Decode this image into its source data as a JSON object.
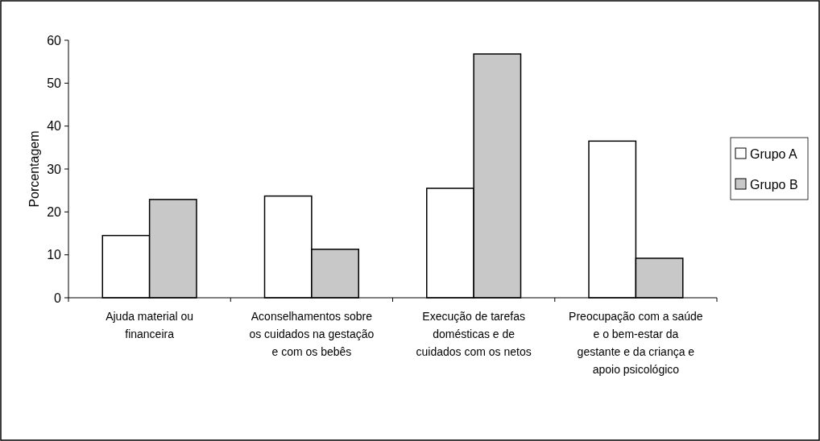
{
  "chart_data": {
    "type": "bar",
    "ylabel": "Porcentagem",
    "categories": [
      "Ajuda material ou financeira",
      "Aconselhamentos sobre os cuidados na gestação e com os bebês",
      "Execução de tarefas domésticas e de cuidados com os netos",
      "Preocupação com a saúde e o bem-estar da gestante e da criança e apoio psicológico"
    ],
    "series": [
      {
        "name": "Grupo A",
        "color": "#ffffff",
        "values": [
          14.5,
          23.7,
          25.5,
          36.5
        ]
      },
      {
        "name": "Grupo B",
        "color": "#c8c8c8",
        "values": [
          22.9,
          11.3,
          56.8,
          9.2
        ]
      }
    ],
    "ylim": [
      0,
      60
    ],
    "yticks": [
      0,
      10,
      20,
      30,
      40,
      50,
      60
    ],
    "grid": false,
    "legend": "right"
  }
}
